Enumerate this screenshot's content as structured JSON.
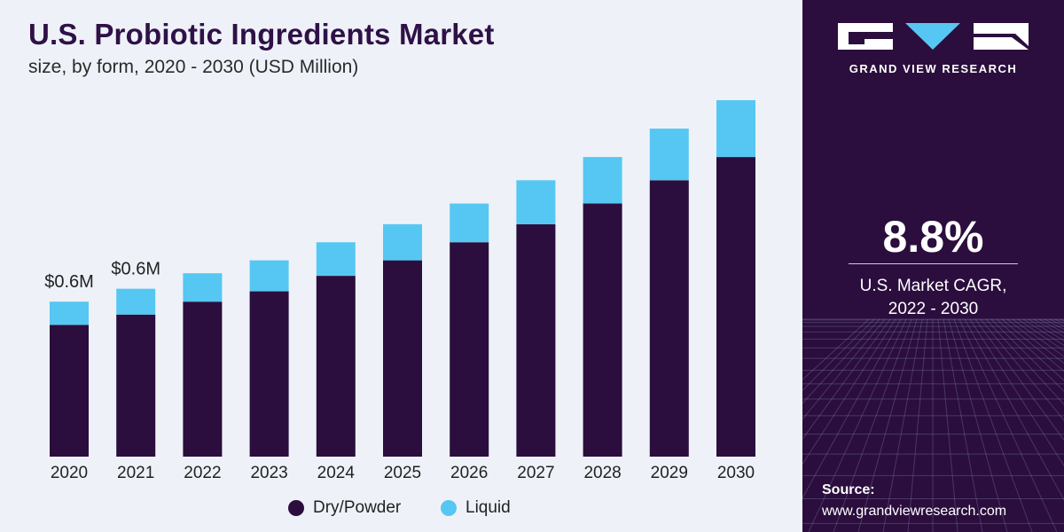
{
  "header": {
    "title": "U.S. Probiotic Ingredients Market",
    "subtitle": "size, by form, 2020 - 2030 (USD Million)"
  },
  "colors": {
    "dry_powder": "#2b0e3d",
    "liquid": "#56c7f2",
    "panel": "#2b0e3d",
    "background": "#eef2f8",
    "title": "#2f1147"
  },
  "chart_data": {
    "type": "bar",
    "stacked": true,
    "categories": [
      "2020",
      "2021",
      "2022",
      "2023",
      "2024",
      "2025",
      "2026",
      "2027",
      "2028",
      "2029",
      "2030"
    ],
    "series": [
      {
        "name": "Dry/Powder",
        "values": [
          0.51,
          0.55,
          0.6,
          0.64,
          0.7,
          0.76,
          0.83,
          0.9,
          0.98,
          1.07,
          1.16
        ]
      },
      {
        "name": "Liquid",
        "values": [
          0.09,
          0.1,
          0.11,
          0.12,
          0.13,
          0.14,
          0.15,
          0.17,
          0.18,
          0.2,
          0.22
        ]
      }
    ],
    "data_labels": [
      {
        "category": "2020",
        "text": "$0.6M"
      },
      {
        "category": "2021",
        "text": "$0.6M"
      }
    ],
    "legend_position": "bottom",
    "grid": false
  },
  "side_panel": {
    "brand": "GRAND VIEW RESEARCH",
    "cagr_value": "8.8%",
    "cagr_label_line1": "U.S. Market CAGR,",
    "cagr_label_line2": "2022 - 2030",
    "source_title": "Source:",
    "source_url": "www.grandviewresearch.com"
  }
}
